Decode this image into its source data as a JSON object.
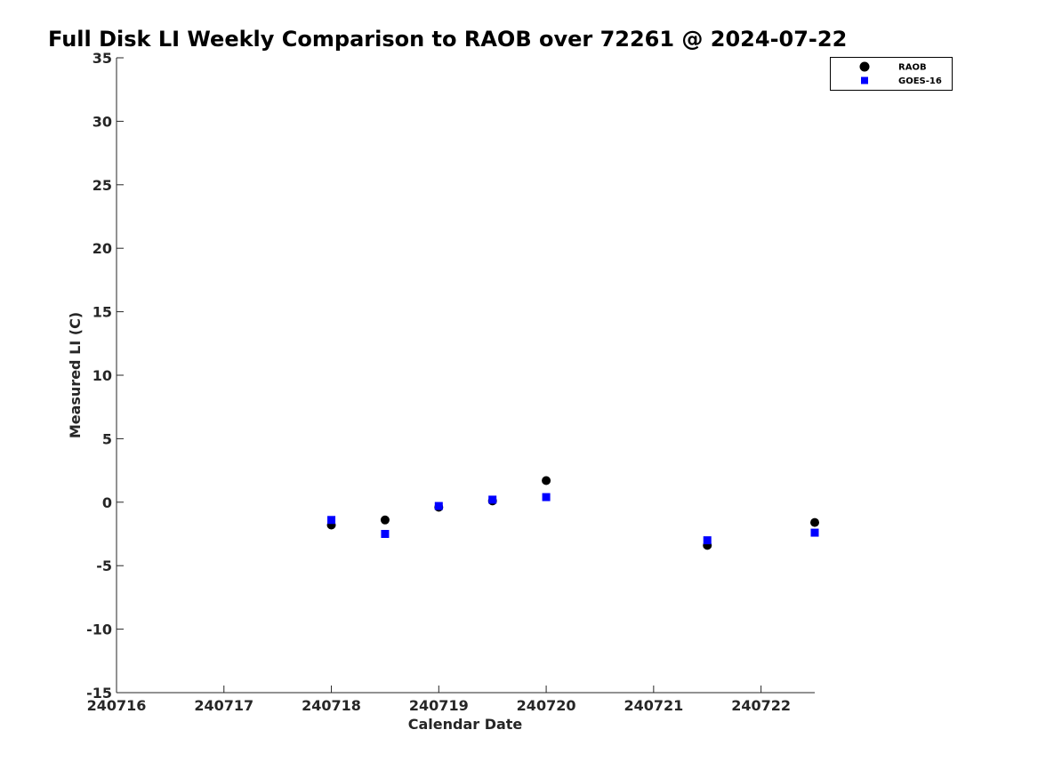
{
  "chart_data": {
    "type": "scatter",
    "title": "Full Disk LI Weekly Comparison to RAOB over 72261 @ 2024-07-22",
    "xlabel": "Calendar Date",
    "ylabel": "Measured LI (C)",
    "xlim": [
      "2024-07-16",
      "2024-07-22 12:00"
    ],
    "ylim": [
      -15,
      35
    ],
    "xticks": [
      "2024-07-16",
      "2024-07-17",
      "2024-07-18",
      "2024-07-19",
      "2024-07-20",
      "2024-07-21",
      "2024-07-22"
    ],
    "xtick_labels": [
      "240716",
      "240717",
      "240718",
      "240719",
      "240720",
      "240721",
      "240722"
    ],
    "yticks": [
      -15,
      -10,
      -5,
      0,
      5,
      10,
      15,
      20,
      25,
      30,
      35
    ],
    "grid": false,
    "legend": "top-right",
    "series": [
      {
        "name": "RAOB",
        "marker": "circle",
        "color": "#000000",
        "x": [
          "2024-07-18 00:00",
          "2024-07-18 12:00",
          "2024-07-19 00:00",
          "2024-07-19 12:00",
          "2024-07-20 00:00",
          "2024-07-21 12:00",
          "2024-07-22 12:00"
        ],
        "y": [
          -1.8,
          -1.4,
          -0.4,
          0.1,
          1.7,
          -3.4,
          -1.6
        ]
      },
      {
        "name": "GOES-16",
        "marker": "square",
        "color": "#0000ff",
        "x": [
          "2024-07-18 00:00",
          "2024-07-18 12:00",
          "2024-07-19 00:00",
          "2024-07-19 12:00",
          "2024-07-20 00:00",
          "2024-07-21 12:00",
          "2024-07-22 12:00"
        ],
        "y": [
          -1.4,
          -2.5,
          -0.3,
          0.2,
          0.4,
          -3.0,
          -2.4
        ]
      }
    ]
  }
}
